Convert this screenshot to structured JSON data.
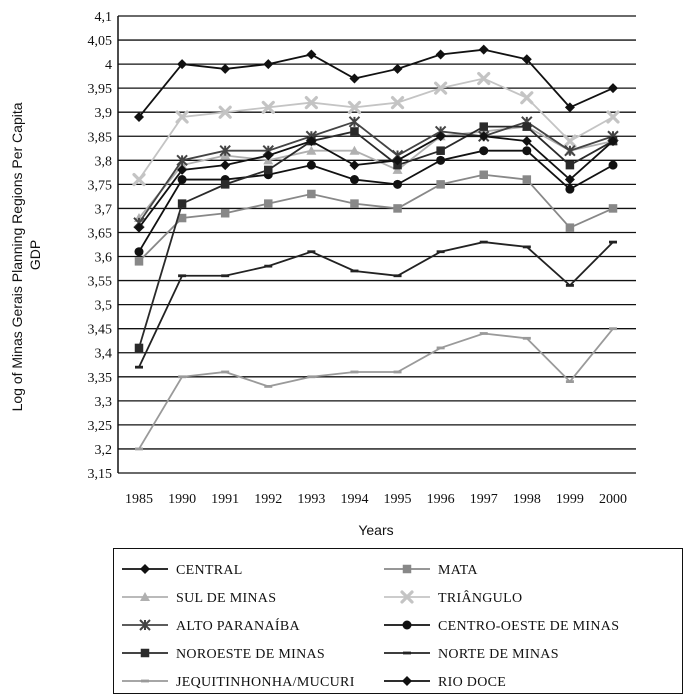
{
  "chart_data": {
    "type": "line",
    "xlabel": "Years",
    "ylabel": "Log of Minas Gerais Planning Regions Per Capita GDP",
    "ylim": [
      3.15,
      4.1
    ],
    "ytick_labels": [
      "3,15",
      "3,2",
      "3,25",
      "3,3",
      "3,35",
      "3,4",
      "3,45",
      "3,5",
      "3,55",
      "3,6",
      "3,65",
      "3,7",
      "3,75",
      "3,8",
      "3,85",
      "3,9",
      "3,95",
      "4",
      "4,05",
      "4,1"
    ],
    "categories": [
      "1985",
      "1990",
      "1991",
      "1992",
      "1993",
      "1994",
      "1995",
      "1996",
      "1997",
      "1998",
      "1999",
      "2000"
    ],
    "grid": "horizontal",
    "legend_position": "bottom",
    "series": [
      {
        "name": "CENTRAL",
        "color": "#111111",
        "marker": "diamond",
        "values": [
          3.89,
          4.0,
          3.99,
          4.0,
          4.02,
          3.97,
          3.99,
          4.02,
          4.03,
          4.01,
          3.91,
          3.95
        ]
      },
      {
        "name": "MATA",
        "color": "#888888",
        "marker": "square",
        "values": [
          3.59,
          3.68,
          3.69,
          3.71,
          3.73,
          3.71,
          3.7,
          3.75,
          3.77,
          3.76,
          3.66,
          3.7
        ]
      },
      {
        "name": "SUL DE MINAS",
        "color": "#b0b0b0",
        "marker": "triangle",
        "values": [
          3.68,
          3.79,
          3.81,
          3.8,
          3.82,
          3.82,
          3.78,
          3.85,
          3.86,
          3.87,
          3.82,
          3.84
        ]
      },
      {
        "name": "TRIÂNGULO",
        "color": "#c4c4c4",
        "marker": "xfill",
        "values": [
          3.76,
          3.89,
          3.9,
          3.91,
          3.92,
          3.91,
          3.92,
          3.95,
          3.97,
          3.93,
          3.84,
          3.89
        ]
      },
      {
        "name": "ALTO PARANAÍBA",
        "color": "#444444",
        "marker": "asterisk",
        "values": [
          3.67,
          3.8,
          3.82,
          3.82,
          3.85,
          3.88,
          3.81,
          3.86,
          3.85,
          3.88,
          3.82,
          3.85
        ]
      },
      {
        "name": "CENTRO-OESTE DE MINAS",
        "color": "#111111",
        "marker": "circle",
        "values": [
          3.61,
          3.76,
          3.76,
          3.77,
          3.79,
          3.76,
          3.75,
          3.8,
          3.82,
          3.82,
          3.74,
          3.79
        ]
      },
      {
        "name": "NOROESTE DE MINAS",
        "color": "#2a2a2a",
        "marker": "square",
        "values": [
          3.41,
          3.71,
          3.75,
          3.78,
          3.84,
          3.86,
          3.79,
          3.82,
          3.87,
          3.87,
          3.79,
          3.84
        ]
      },
      {
        "name": "NORTE DE MINAS",
        "color": "#222222",
        "marker": "dash",
        "values": [
          3.37,
          3.56,
          3.56,
          3.58,
          3.61,
          3.57,
          3.56,
          3.61,
          3.63,
          3.62,
          3.54,
          3.63
        ]
      },
      {
        "name": "JEQUITINHONHA/MUCURI",
        "color": "#9a9a9a",
        "marker": "dash",
        "values": [
          3.2,
          3.35,
          3.36,
          3.33,
          3.35,
          3.36,
          3.36,
          3.41,
          3.44,
          3.43,
          3.34,
          3.45
        ]
      },
      {
        "name": "RIO DOCE",
        "color": "#111111",
        "marker": "diamond",
        "values": [
          3.66,
          3.78,
          3.79,
          3.81,
          3.84,
          3.79,
          3.8,
          3.85,
          3.85,
          3.84,
          3.76,
          3.84
        ]
      }
    ]
  }
}
